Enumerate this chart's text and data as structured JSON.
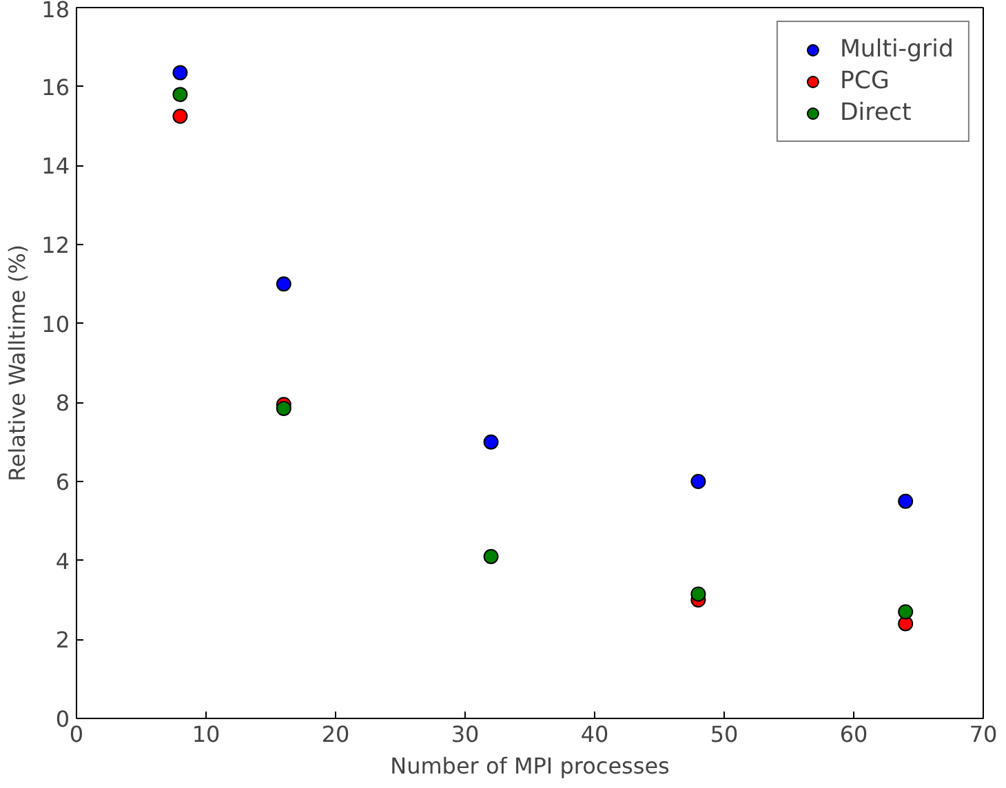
{
  "chart_data": {
    "type": "scatter",
    "xlabel": "Number of MPI processes",
    "ylabel": "Relative Walltime (%)",
    "x": [
      8,
      16,
      32,
      48,
      64
    ],
    "series": [
      {
        "name": "Multi-grid",
        "color": "#0000ff",
        "values": [
          16.35,
          11.0,
          7.0,
          6.0,
          5.5
        ]
      },
      {
        "name": "PCG",
        "color": "#ff0000",
        "values": [
          15.25,
          7.95,
          null,
          3.0,
          2.4
        ]
      },
      {
        "name": "Direct",
        "color": "#008000",
        "values": [
          15.8,
          7.85,
          4.1,
          3.15,
          2.7
        ]
      }
    ],
    "xlim": [
      0,
      70
    ],
    "ylim": [
      0,
      18
    ],
    "xticks": [
      0,
      10,
      20,
      30,
      40,
      50,
      60,
      70
    ],
    "yticks": [
      0,
      2,
      4,
      6,
      8,
      10,
      12,
      14,
      16,
      18
    ],
    "grid": false,
    "legend": "top right",
    "marker": "circle"
  }
}
